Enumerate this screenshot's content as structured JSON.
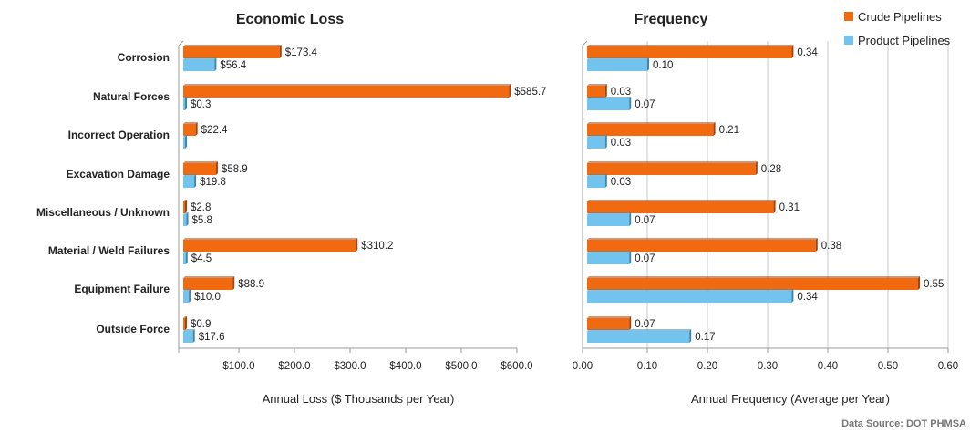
{
  "colors": {
    "crude": "#f26a10",
    "crude_shade": "#a8410a",
    "product": "#72c4ef",
    "product_shade": "#3d86ad",
    "axis": "#9a9a9a",
    "grid": "#c8c8c8"
  },
  "legend": {
    "crude_label": "Crude Pipelines",
    "product_label": "Product Pipelines",
    "position": "top-right"
  },
  "source_note": "Data Source: DOT PHMSA",
  "chart_data": [
    {
      "type": "bar",
      "orientation": "horizontal",
      "title": "Economic Loss",
      "xlabel": "Annual Loss ($ Thousands per Year)",
      "ylabel": "",
      "xlim": [
        0,
        600
      ],
      "xticks": [
        100,
        200,
        300,
        400,
        500,
        600
      ],
      "xtick_labels": [
        "$100.0",
        "$200.0",
        "$300.0",
        "$400.0",
        "$500.0",
        "$600.0"
      ],
      "grid": false,
      "categories": [
        "Corrosion",
        "Natural Forces",
        "Incorrect Operation",
        "Excavation Damage",
        "Miscellaneous / Unknown",
        "Material / Weld Failures",
        "Equipment Failure",
        "Outside Force"
      ],
      "series": [
        {
          "name": "Crude Pipelines",
          "values": [
            173.4,
            585.7,
            22.4,
            58.9,
            2.8,
            310.2,
            88.9,
            0.9
          ],
          "labels": [
            "$173.4",
            "$585.7",
            "$22.4",
            "$58.9",
            "$2.8",
            "$310.2",
            "$88.9",
            "$0.9"
          ]
        },
        {
          "name": "Product Pipelines",
          "values": [
            56.4,
            0.3,
            0,
            19.8,
            5.8,
            4.5,
            10.0,
            17.6
          ],
          "labels": [
            "$56.4",
            "$0.3",
            "",
            "$19.8",
            "$5.8",
            "$4.5",
            "$10.0",
            "$17.6"
          ]
        }
      ]
    },
    {
      "type": "bar",
      "orientation": "horizontal",
      "title": "Frequency",
      "xlabel": "Annual Frequency (Average per Year)",
      "ylabel": "",
      "xlim": [
        0,
        0.6
      ],
      "xticks": [
        0,
        0.1,
        0.2,
        0.3,
        0.4,
        0.5,
        0.6
      ],
      "xtick_labels": [
        "0.00",
        "0.10",
        "0.20",
        "0.30",
        "0.40",
        "0.50",
        "0.60"
      ],
      "grid": true,
      "categories": [
        "Corrosion",
        "Natural Forces",
        "Incorrect Operation",
        "Excavation Damage",
        "Miscellaneous / Unknown",
        "Material / Weld Failures",
        "Equipment Failure",
        "Outside Force"
      ],
      "series": [
        {
          "name": "Crude Pipelines",
          "values": [
            0.34,
            0.03,
            0.21,
            0.28,
            0.31,
            0.38,
            0.55,
            0.07
          ],
          "labels": [
            "0.34",
            "0.03",
            "0.21",
            "0.28",
            "0.31",
            "0.38",
            "0.55",
            "0.07"
          ]
        },
        {
          "name": "Product Pipelines",
          "values": [
            0.1,
            0.07,
            0.03,
            0.03,
            0.07,
            0.07,
            0.34,
            0.17
          ],
          "labels": [
            "0.10",
            "0.07",
            "0.03",
            "0.03",
            "0.07",
            "0.07",
            "0.34",
            "0.17"
          ]
        }
      ]
    }
  ]
}
